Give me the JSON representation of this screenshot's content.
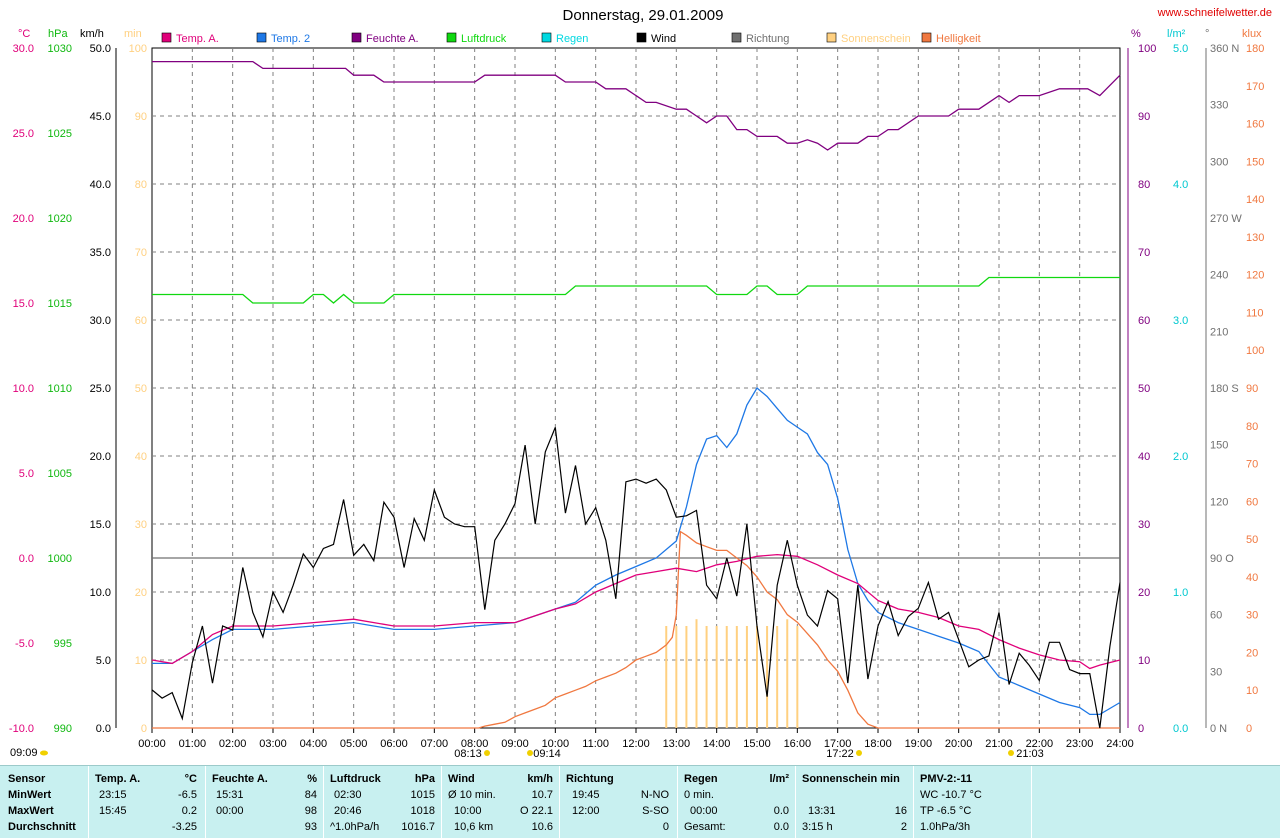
{
  "header": {
    "title": "Donnerstag, 29.01.2009",
    "site": "www.schneifelwetter.de"
  },
  "legend": [
    {
      "label": "Temp. A.",
      "color": "#e0007a"
    },
    {
      "label": "Temp. 2",
      "color": "#1e78e6"
    },
    {
      "label": "Feuchte A.",
      "color": "#800080"
    },
    {
      "label": "Luftdruck",
      "color": "#10d810"
    },
    {
      "label": "Regen",
      "color": "#00d8e0"
    },
    {
      "label": "Wind",
      "color": "#000000"
    },
    {
      "label": "Richtung",
      "color": "#707070"
    },
    {
      "label": "Sonnenschein",
      "color": "#ffd080"
    },
    {
      "label": "Helligkeit",
      "color": "#f07840"
    }
  ],
  "units": {
    "temp": "°C",
    "pressure": "hPa",
    "wind": "km/h",
    "sunmin": "min",
    "humidity": "%",
    "rain": "l/m²",
    "direction": "°",
    "lux": "klux"
  },
  "axes": {
    "temp": [
      "30.0",
      "25.0",
      "20.0",
      "15.0",
      "10.0",
      "5.0",
      "0.0",
      "-5.0",
      "-10.0"
    ],
    "pressure": [
      "1030",
      "1025",
      "1020",
      "1015",
      "1010",
      "1005",
      "1000",
      "995",
      "990"
    ],
    "wind": [
      "50.0",
      "45.0",
      "40.0",
      "35.0",
      "30.0",
      "25.0",
      "20.0",
      "15.0",
      "10.0",
      "5.0",
      "0.0"
    ],
    "sunmin": [
      "100",
      "90",
      "80",
      "70",
      "60",
      "50",
      "40",
      "30",
      "20",
      "10",
      "0"
    ],
    "humidity": [
      "100",
      "90",
      "80",
      "70",
      "60",
      "50",
      "40",
      "30",
      "20",
      "10",
      "0"
    ],
    "rain": [
      "5.0",
      "4.0",
      "3.0",
      "2.0",
      "1.0",
      "0.0"
    ],
    "direction": [
      "360 N",
      "330",
      "300",
      "270 W",
      "240",
      "210",
      "180 S",
      "150",
      "120",
      "90  O",
      "60",
      "30",
      "0   N"
    ],
    "lux": [
      "180",
      "170",
      "160",
      "150",
      "140",
      "130",
      "120",
      "110",
      "100",
      "90",
      "80",
      "70",
      "60",
      "50",
      "40",
      "30",
      "20",
      "10",
      "0"
    ],
    "time": [
      "00:00",
      "01:00",
      "02:00",
      "03:00",
      "04:00",
      "05:00",
      "06:00",
      "07:00",
      "08:00",
      "09:00",
      "10:00",
      "11:00",
      "12:00",
      "13:00",
      "14:00",
      "15:00",
      "16:00",
      "17:00",
      "18:00",
      "19:00",
      "20:00",
      "21:00",
      "22:00",
      "23:00",
      "24:00"
    ]
  },
  "markers": {
    "sunrise": "08:13",
    "sunrise2": "09:14",
    "sunset": "17:22",
    "moon": "21:03",
    "moonrise": "09:09"
  },
  "chart_data": {
    "type": "line",
    "title": "Donnerstag, 29.01.2009",
    "x_unit": "hour",
    "series": [
      {
        "name": "Feuchte A.",
        "axis": "humidity",
        "color": "#800080",
        "x": [
          0,
          2.5,
          2.75,
          4.8,
          5,
          5.5,
          5.75,
          8,
          8.25,
          10,
          10.25,
          11,
          11.25,
          11.75,
          12,
          12.25,
          12.5,
          13,
          13.25,
          13.5,
          13.75,
          14,
          14.25,
          14.5,
          14.75,
          15,
          15.5,
          15.75,
          16,
          16.25,
          16.5,
          16.75,
          17,
          17.5,
          17.75,
          18,
          18.25,
          18.5,
          19,
          19.75,
          20,
          20.5,
          20.75,
          21,
          21.25,
          21.5,
          22,
          22.5,
          22.75,
          23.2,
          23.5,
          24
        ],
        "y": [
          98,
          98,
          97,
          97,
          96,
          96,
          95,
          95,
          96,
          96,
          95,
          95,
          94,
          94,
          93,
          92,
          92,
          91,
          91,
          90,
          89,
          90,
          90,
          88,
          88,
          87,
          87,
          86,
          86,
          86.5,
          86,
          85,
          86,
          86,
          87,
          87,
          88,
          88,
          90,
          90,
          91,
          91,
          92,
          93,
          92,
          93,
          93,
          94,
          94,
          94,
          93,
          96
        ]
      },
      {
        "name": "Luftdruck",
        "axis": "pressure",
        "color": "#10d810",
        "x": [
          0,
          2.25,
          2.5,
          3.75,
          4,
          4.25,
          4.5,
          4.75,
          5,
          5.25,
          5.75,
          6,
          10.25,
          10.5,
          13.75,
          14,
          14.75,
          15,
          15.25,
          15.5,
          16,
          16.25,
          20.5,
          20.75,
          24
        ],
        "y": [
          1015.5,
          1015.5,
          1015,
          1015,
          1015.5,
          1015.5,
          1015,
          1015.5,
          1015,
          1015,
          1015,
          1015.5,
          1015.5,
          1016,
          1016,
          1015.5,
          1015.5,
          1016,
          1016,
          1015.5,
          1015.5,
          1016,
          1016,
          1016.5,
          1016.5
        ]
      },
      {
        "name": "Temp. A.",
        "axis": "temp",
        "color": "#e0007a",
        "x": [
          0,
          0.5,
          1,
          1.5,
          2,
          3,
          4,
          5,
          6,
          7,
          8,
          9,
          10,
          10.5,
          11,
          11.5,
          12,
          12.5,
          13,
          13.5,
          14,
          14.5,
          15,
          15.5,
          16,
          16.5,
          17,
          17.5,
          18,
          18.5,
          19,
          19.5,
          20,
          20.5,
          21,
          21.5,
          22,
          22.5,
          23,
          23.25,
          23.5,
          24
        ],
        "y": [
          -6,
          -6.2,
          -5.5,
          -4.5,
          -4,
          -4,
          -3.8,
          -3.6,
          -4,
          -4,
          -3.8,
          -3.8,
          -3,
          -2.7,
          -2,
          -1.5,
          -1,
          -0.8,
          -0.6,
          -0.8,
          -0.4,
          -0.2,
          0.1,
          0.2,
          0.1,
          -0.4,
          -1,
          -1.5,
          -2.5,
          -3,
          -3.2,
          -3.5,
          -4,
          -4.2,
          -4.8,
          -5.3,
          -5.7,
          -6,
          -6.1,
          -6.5,
          -6.3,
          -6
        ]
      },
      {
        "name": "Temp. 2",
        "axis": "temp",
        "color": "#1e78e6",
        "x": [
          0,
          0.5,
          1,
          1.5,
          2,
          3,
          4,
          5,
          6,
          7,
          8,
          9,
          10,
          10.5,
          11,
          11.5,
          12,
          12.5,
          13,
          13.25,
          13.5,
          13.75,
          14,
          14.25,
          14.5,
          14.75,
          15,
          15.25,
          15.5,
          15.75,
          16,
          16.25,
          16.5,
          16.75,
          17,
          17.25,
          17.5,
          17.75,
          18,
          18.5,
          19,
          19.5,
          20,
          20.5,
          21,
          21.5,
          22,
          22.5,
          23,
          23.25,
          23.5,
          24
        ],
        "y": [
          -6.2,
          -6.2,
          -5.5,
          -4.8,
          -4.2,
          -4.2,
          -4,
          -3.8,
          -4.2,
          -4.2,
          -4,
          -3.8,
          -3,
          -2.6,
          -1.6,
          -1,
          -0.5,
          0,
          1,
          3,
          5.5,
          7,
          7.2,
          6.5,
          7.3,
          9,
          10,
          9.5,
          8.8,
          8.1,
          7.7,
          7.3,
          6.2,
          5.5,
          3.5,
          0.5,
          -1.5,
          -2.5,
          -3.2,
          -3.8,
          -4.2,
          -4.6,
          -5,
          -5.5,
          -7,
          -7.5,
          -8,
          -8.5,
          -8.8,
          -9.2,
          -9.2,
          -8.5
        ]
      },
      {
        "name": "Wind",
        "axis": "wind",
        "color": "#000000",
        "x": [
          0,
          0.25,
          0.5,
          0.75,
          1,
          1.25,
          1.5,
          1.75,
          2,
          2.25,
          2.5,
          2.75,
          3,
          3.25,
          3.5,
          3.75,
          4,
          4.25,
          4.5,
          4.75,
          5,
          5.25,
          5.5,
          5.75,
          6,
          6.25,
          6.5,
          6.75,
          7,
          7.25,
          7.5,
          7.75,
          8,
          8.25,
          8.5,
          8.75,
          9,
          9.25,
          9.5,
          9.75,
          10,
          10.25,
          10.5,
          10.75,
          11,
          11.25,
          11.5,
          11.75,
          12,
          12.25,
          12.5,
          12.75,
          13,
          13.25,
          13.5,
          13.75,
          14,
          14.25,
          14.5,
          14.75,
          15,
          15.25,
          15.5,
          15.75,
          16,
          16.25,
          16.5,
          16.75,
          17,
          17.25,
          17.5,
          17.75,
          18,
          18.25,
          18.5,
          18.75,
          19,
          19.25,
          19.5,
          19.75,
          20,
          20.25,
          20.5,
          20.75,
          21,
          21.25,
          21.5,
          21.75,
          22,
          22.25,
          22.5,
          22.75,
          23,
          23.25,
          23.5,
          23.75,
          24
        ],
        "y": [
          2.8,
          2.2,
          2.6,
          0.7,
          4.8,
          7.5,
          3.3,
          7.5,
          7.2,
          11.8,
          8.5,
          6.7,
          10,
          8.5,
          10.5,
          12.8,
          11.8,
          13.2,
          13.5,
          16.8,
          12.7,
          13.5,
          12.3,
          16.6,
          15.5,
          11.8,
          15.4,
          13.8,
          17.5,
          15.5,
          15,
          14.8,
          14.8,
          8.7,
          13.8,
          15,
          16.5,
          20.8,
          15,
          20.3,
          22.1,
          15.8,
          19.3,
          15,
          16.2,
          13.8,
          9.5,
          18.1,
          18.3,
          18,
          18.3,
          17.5,
          15.5,
          15.6,
          16,
          10.5,
          9.5,
          12.5,
          9.7,
          15,
          7.5,
          2.3,
          10.5,
          13.8,
          10.5,
          8.3,
          7.5,
          10.1,
          9.5,
          3.3,
          10.5,
          3.6,
          7.5,
          9.3,
          6.8,
          8.2,
          8.8,
          10.7,
          8,
          8.5,
          6.5,
          4.5,
          5,
          5.3,
          8.5,
          3.2,
          5.5,
          4.6,
          3.5,
          6.3,
          6.3,
          4.3,
          4,
          4,
          0,
          6,
          10.7
        ]
      },
      {
        "name": "Helligkeit",
        "axis": "lux",
        "color": "#f07840",
        "x": [
          0,
          8.1,
          8.25,
          8.5,
          8.75,
          9,
          9.25,
          9.5,
          9.75,
          10,
          10.25,
          10.5,
          10.75,
          11,
          11.25,
          11.5,
          11.75,
          12,
          12.25,
          12.5,
          12.75,
          12.9,
          13,
          13.1,
          13.25,
          13.5,
          13.75,
          14,
          14.25,
          14.5,
          14.75,
          15,
          15.25,
          15.5,
          15.75,
          16,
          16.25,
          16.5,
          16.75,
          17,
          17.25,
          17.5,
          17.75,
          18,
          24
        ],
        "y": [
          0,
          0,
          0.5,
          1,
          1.5,
          3,
          4,
          5,
          6,
          8,
          9,
          10,
          11,
          12.5,
          13.5,
          14.5,
          16,
          18,
          19,
          20,
          22,
          24,
          30,
          52,
          51,
          49,
          48,
          47,
          47,
          45,
          43,
          40,
          36,
          34,
          30,
          28,
          25,
          22,
          18,
          15,
          10,
          4,
          1,
          0,
          0
        ]
      },
      {
        "name": "Sonnenschein",
        "axis": "sunmin",
        "type": "bar",
        "color": "#ffd080",
        "x": [
          12.75,
          13,
          13.25,
          13.5,
          13.75,
          14,
          14.25,
          14.5,
          14.75,
          15,
          15.25,
          15.5,
          15.75,
          16
        ],
        "y": [
          15,
          15,
          15,
          16,
          15,
          15,
          15,
          15,
          15,
          15,
          15,
          15,
          16,
          15
        ]
      }
    ]
  },
  "stats": {
    "sensor": {
      "head": "Sensor",
      "rows": [
        "MinWert",
        "MaxWert",
        "Durchschnitt"
      ]
    },
    "temp": {
      "head": "Temp. A.",
      "unit": "°C",
      "rows": [
        [
          "23:15",
          "-6.5"
        ],
        [
          "15:45",
          "0.2"
        ],
        [
          "",
          "-3.25"
        ]
      ]
    },
    "hum": {
      "head": "Feuchte A.",
      "unit": "%",
      "rows": [
        [
          "15:31",
          "84"
        ],
        [
          "00:00",
          "98"
        ],
        [
          "",
          "93"
        ]
      ]
    },
    "press": {
      "head": "Luftdruck",
      "unit": "hPa",
      "rows": [
        [
          "02:30",
          "1015"
        ],
        [
          "20:46",
          "1018"
        ],
        [
          "^1.0hPa/h",
          "1016.7"
        ]
      ]
    },
    "wind": {
      "head": "Wind",
      "unit": "km/h",
      "rows": [
        [
          "Ø 10 min.",
          "10.7"
        ],
        [
          "10:00",
          "O 22.1"
        ],
        [
          "10,6 km",
          "10.6"
        ]
      ]
    },
    "dir": {
      "head": "Richtung",
      "rows": [
        [
          "19:45",
          "N-NO"
        ],
        [
          "12:00",
          "S-SO"
        ],
        [
          "",
          "0"
        ]
      ]
    },
    "rain": {
      "head": "Regen",
      "unit": "l/m²",
      "rows": [
        [
          "0 min.",
          ""
        ],
        [
          "00:00",
          "0.0"
        ],
        [
          "Gesamt:",
          "0.0"
        ]
      ]
    },
    "sun": {
      "head": "Sonnenschein min",
      "rows": [
        [
          "",
          ""
        ],
        [
          "13:31",
          "16"
        ],
        [
          "3:15 h",
          "2"
        ]
      ]
    },
    "pmv": {
      "head": "PMV-2:-11",
      "rows": [
        "WC -10.7 °C",
        "TP -6.5 °C",
        "1.0hPa/3h"
      ]
    }
  }
}
